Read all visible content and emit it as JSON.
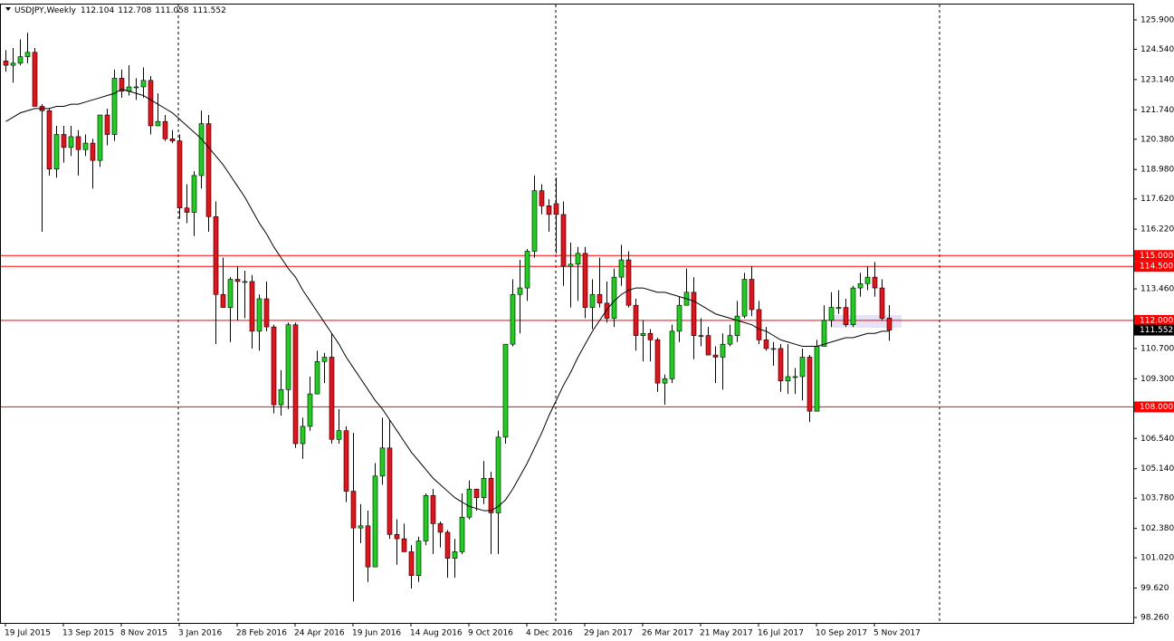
{
  "chart_data": {
    "type": "candlestick",
    "title": "USDJPY,Weekly",
    "categories": [
      "19 Jul 2015",
      null,
      null,
      null,
      null,
      null,
      null,
      null,
      "13 Sep 2015",
      null,
      null,
      null,
      null,
      null,
      null,
      null,
      "8 Nov 2015",
      null,
      null,
      null,
      null,
      null,
      null,
      null,
      "3 Jan 2016",
      null,
      null,
      null,
      null,
      null,
      null,
      null,
      "28 Feb 2016",
      null,
      null,
      null,
      null,
      null,
      null,
      null,
      "24 Apr 2016",
      null,
      null,
      null,
      null,
      null,
      null,
      null,
      "19 Jun 2016",
      null,
      null,
      null,
      null,
      null,
      null,
      null,
      "14 Aug 2016",
      null,
      null,
      null,
      null,
      null,
      null,
      null,
      "9 Oct 2016",
      null,
      null,
      null,
      null,
      null,
      null,
      null,
      "4 Dec 2016",
      null,
      null,
      null,
      null,
      null,
      null,
      null,
      "29 Jan 2017",
      null,
      null,
      null,
      null,
      null,
      null,
      null,
      "26 Mar 2017",
      null,
      null,
      null,
      null,
      null,
      null,
      null,
      "21 May 2017",
      null,
      null,
      null,
      null,
      null,
      null,
      null,
      "16 Jul 2017",
      null,
      null,
      null,
      null,
      null,
      null,
      null,
      "10 Sep 2017",
      null,
      null,
      null,
      null,
      null,
      null,
      null,
      "5 Nov 2017",
      null,
      null
    ],
    "open": [
      124.0,
      123.8,
      123.9,
      124.2,
      124.4,
      121.9,
      121.7,
      119.0,
      120.6,
      120.0,
      120.5,
      119.9,
      120.2,
      119.4,
      121.5,
      120.6,
      123.2,
      122.6,
      122.8,
      122.8,
      123.1,
      121.0,
      121.2,
      120.4,
      120.3,
      117.2,
      117.0,
      118.7,
      121.1,
      116.8,
      113.2,
      112.6,
      113.9,
      113.8,
      113.8,
      111.5,
      113.0,
      111.7,
      108.1,
      108.8,
      111.8,
      106.3,
      107.1,
      108.6,
      110.1,
      110.3,
      106.5,
      106.9,
      104.1,
      102.4,
      102.5,
      100.6,
      104.8,
      106.1,
      102.1,
      101.9,
      101.3,
      100.2,
      101.8,
      103.9,
      102.6,
      102.2,
      101.0,
      101.3,
      102.9,
      104.2,
      103.8,
      104.7,
      103.1,
      106.6,
      110.9,
      113.2,
      113.5,
      115.2,
      118.0,
      117.3,
      117.4,
      116.9,
      114.5,
      114.6,
      115.1,
      112.6,
      113.2,
      112.8,
      112.1,
      114.0,
      114.8,
      112.7,
      111.3,
      111.4,
      111.1,
      109.1,
      109.3,
      111.5,
      112.7,
      113.3,
      111.3,
      111.3,
      110.4,
      110.3,
      110.9,
      111.3,
      112.2,
      113.9,
      112.5,
      111.1,
      110.7,
      110.7,
      109.2,
      109.4,
      109.4,
      110.3,
      107.8,
      110.8,
      112.0,
      112.6,
      112.6,
      111.8,
      113.5,
      113.7,
      114.0,
      113.5,
      112.104
    ],
    "high": [
      124.5,
      124.6,
      125.0,
      125.3,
      124.6,
      122.0,
      121.8,
      121.0,
      121.0,
      121.0,
      120.8,
      120.6,
      120.4,
      121.5,
      121.8,
      123.6,
      123.6,
      123.8,
      123.2,
      123.7,
      123.3,
      122.5,
      121.5,
      120.8,
      120.6,
      118.3,
      118.9,
      121.7,
      121.5,
      117.5,
      114.9,
      114.0,
      114.5,
      114.3,
      114.1,
      113.2,
      113.8,
      111.8,
      109.7,
      111.9,
      111.9,
      107.5,
      109.4,
      110.6,
      110.5,
      111.4,
      107.9,
      107.1,
      106.8,
      103.5,
      103.2,
      105.4,
      107.5,
      107.4,
      102.8,
      102.6,
      101.6,
      102.0,
      104.0,
      104.2,
      102.7,
      102.3,
      101.9,
      104.0,
      104.6,
      104.2,
      105.5,
      105.0,
      106.9,
      110.9,
      113.9,
      114.8,
      115.3,
      118.7,
      118.3,
      117.6,
      118.6,
      117.5,
      115.6,
      115.4,
      115.4,
      113.9,
      114.9,
      113.8,
      114.4,
      115.5,
      115.2,
      113.0,
      112.0,
      111.6,
      111.2,
      109.5,
      111.8,
      113.1,
      114.4,
      114.0,
      112.1,
      111.7,
      110.8,
      111.4,
      111.8,
      112.9,
      114.2,
      114.5,
      112.9,
      111.7,
      111.0,
      110.9,
      110.9,
      109.8,
      110.7,
      110.4,
      111.1,
      112.7,
      113.3,
      113.4,
      113.0,
      113.6,
      114.2,
      114.5,
      114.7,
      113.9,
      112.708
    ],
    "low": [
      123.5,
      123.0,
      123.8,
      123.9,
      122.0,
      116.1,
      118.7,
      118.6,
      119.3,
      119.6,
      118.7,
      119.6,
      118.1,
      119.1,
      120.1,
      120.3,
      122.3,
      122.4,
      122.2,
      122.3,
      120.6,
      121.0,
      120.3,
      120.2,
      116.7,
      116.5,
      115.9,
      118.1,
      116.1,
      110.9,
      112.6,
      111.0,
      112.0,
      112.1,
      110.7,
      110.6,
      111.5,
      107.7,
      107.6,
      107.9,
      106.1,
      105.6,
      106.9,
      108.6,
      109.1,
      106.3,
      106.3,
      103.6,
      99.0,
      101.7,
      99.9,
      100.6,
      104.4,
      101.9,
      100.7,
      101.3,
      99.6,
      99.9,
      101.6,
      101.2,
      101.5,
      100.1,
      100.1,
      101.2,
      102.8,
      103.2,
      103.5,
      101.2,
      101.2,
      106.3,
      110.8,
      111.4,
      112.9,
      114.9,
      116.9,
      116.1,
      115.1,
      113.6,
      112.6,
      112.9,
      112.1,
      111.6,
      112.6,
      111.9,
      111.7,
      113.6,
      112.6,
      110.6,
      110.1,
      110.1,
      108.7,
      108.1,
      109.1,
      111.0,
      112.7,
      110.2,
      110.8,
      110.4,
      109.1,
      108.8,
      110.8,
      111.0,
      112.1,
      112.2,
      110.9,
      110.6,
      109.9,
      108.7,
      108.6,
      108.6,
      108.3,
      107.3,
      107.8,
      110.8,
      111.7,
      112.3,
      111.7,
      111.7,
      113.1,
      113.4,
      113.1,
      112.0,
      111.058
    ],
    "close": [
      123.8,
      123.9,
      124.2,
      124.4,
      121.9,
      121.7,
      119.0,
      120.6,
      120.0,
      120.5,
      119.9,
      120.2,
      119.4,
      121.5,
      120.6,
      123.2,
      122.6,
      122.8,
      122.8,
      123.1,
      121.0,
      121.2,
      120.4,
      120.3,
      117.2,
      117.0,
      118.7,
      121.1,
      116.8,
      113.2,
      112.6,
      113.9,
      113.8,
      113.8,
      111.5,
      113.0,
      111.7,
      108.1,
      108.8,
      111.8,
      106.3,
      107.1,
      108.6,
      110.1,
      110.3,
      106.5,
      106.9,
      104.1,
      102.4,
      102.5,
      100.6,
      104.8,
      106.1,
      102.1,
      101.9,
      101.3,
      100.2,
      101.8,
      103.9,
      102.6,
      102.2,
      101.0,
      101.3,
      102.9,
      104.2,
      103.8,
      104.7,
      103.1,
      106.6,
      110.9,
      113.2,
      113.5,
      115.2,
      118.0,
      117.3,
      116.9,
      116.9,
      114.5,
      114.6,
      115.1,
      112.6,
      113.2,
      112.8,
      112.1,
      114.0,
      114.8,
      112.7,
      111.3,
      111.4,
      111.1,
      109.1,
      109.3,
      111.5,
      112.7,
      113.3,
      111.3,
      111.3,
      110.4,
      110.3,
      110.9,
      111.3,
      112.2,
      113.9,
      112.5,
      111.1,
      110.7,
      110.7,
      109.2,
      109.4,
      109.4,
      110.3,
      107.8,
      110.8,
      112.0,
      112.6,
      112.6,
      111.8,
      113.5,
      113.7,
      114.0,
      113.5,
      112.1,
      111.552
    ],
    "bull_color": "#22cc22",
    "bear_color": "#e0141c",
    "ma": {
      "color": "#000000",
      "values": [
        121.2,
        121.4,
        121.6,
        121.7,
        121.8,
        121.8,
        121.8,
        121.9,
        121.9,
        122.0,
        122.0,
        122.1,
        122.2,
        122.3,
        122.4,
        122.5,
        122.7,
        122.6,
        122.5,
        122.4,
        122.2,
        122.0,
        121.8,
        121.6,
        121.3,
        121.0,
        120.7,
        120.4,
        120.0,
        119.6,
        119.2,
        118.7,
        118.2,
        117.7,
        117.1,
        116.5,
        116.0,
        115.4,
        114.9,
        114.4,
        114.0,
        113.4,
        112.9,
        112.4,
        111.9,
        111.4,
        110.9,
        110.3,
        109.8,
        109.3,
        108.8,
        108.3,
        107.9,
        107.4,
        106.9,
        106.4,
        105.9,
        105.5,
        105.1,
        104.7,
        104.4,
        104.1,
        103.8,
        103.6,
        103.4,
        103.3,
        103.2,
        103.2,
        103.4,
        103.7,
        104.2,
        104.8,
        105.4,
        106.1,
        106.8,
        107.6,
        108.3,
        109.0,
        109.6,
        110.3,
        110.9,
        111.5,
        112.0,
        112.5,
        112.9,
        113.2,
        113.4,
        113.5,
        113.5,
        113.4,
        113.3,
        113.3,
        113.2,
        113.1,
        113.0,
        112.9,
        112.7,
        112.5,
        112.3,
        112.2,
        112.1,
        112.0,
        111.9,
        111.8,
        111.6,
        111.5,
        111.3,
        111.1,
        111.0,
        110.9,
        110.8,
        110.8,
        110.8,
        110.9,
        111.0,
        111.1,
        111.2,
        111.2,
        111.3,
        111.4,
        111.4,
        111.5,
        111.5
      ]
    },
    "levels": [
      {
        "value": 115,
        "label": "115.000"
      },
      {
        "value": 114.5,
        "label": "114.500"
      },
      {
        "value": 112,
        "label": "112.000"
      },
      {
        "value": 108,
        "label": "108.000"
      }
    ],
    "level_color": "#ff0000",
    "ylim": [
      98.01,
      126.61
    ],
    "yticks": [
      {
        "value": 125.9,
        "label": "125.900"
      },
      {
        "value": 124.54,
        "label": "124.540"
      },
      {
        "value": 123.14,
        "label": "123.140"
      },
      {
        "value": 121.74,
        "label": "121.740"
      },
      {
        "value": 120.38,
        "label": "120.380"
      },
      {
        "value": 118.98,
        "label": "118.980"
      },
      {
        "value": 117.62,
        "label": "117.620"
      },
      {
        "value": 116.22,
        "label": "116.220"
      },
      {
        "value": 113.46,
        "label": "113.460"
      },
      {
        "value": 110.7,
        "label": "110.700"
      },
      {
        "value": 109.3,
        "label": "109.300"
      },
      {
        "value": 106.54,
        "label": "106.540"
      },
      {
        "value": 105.14,
        "label": "105.140"
      },
      {
        "value": 103.78,
        "label": "103.780"
      },
      {
        "value": 102.38,
        "label": "102.380"
      },
      {
        "value": 101.02,
        "label": "101.020"
      },
      {
        "value": 99.62,
        "label": "99.620"
      },
      {
        "value": 98.26,
        "label": "98.260"
      }
    ]
  }
}
